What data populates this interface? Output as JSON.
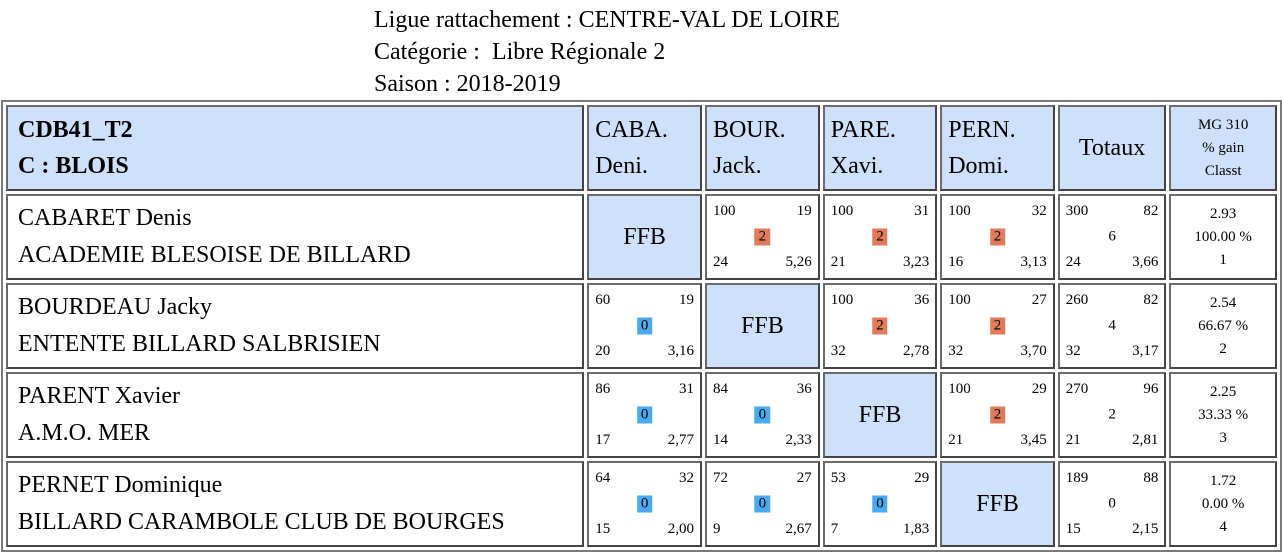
{
  "header": {
    "ligue": "Ligue rattachement : CENTRE-VAL DE LOIRE",
    "categorie": "Catégorie :  Libre Régionale 2",
    "saison": "Saison : 2018-2019"
  },
  "table": {
    "team_line1": "CDB41_T2",
    "team_line2": "C : BLOIS",
    "cols": [
      {
        "l1": "CABA.",
        "l2": "Deni."
      },
      {
        "l1": "BOUR.",
        "l2": "Jack."
      },
      {
        "l1": "PARE.",
        "l2": "Xavi."
      },
      {
        "l1": "PERN.",
        "l2": "Domi."
      }
    ],
    "totaux": "Totaux",
    "mg": {
      "l1": "MG 310",
      "l2": "% gain",
      "l3": "Classt"
    },
    "rows": [
      {
        "name": "CABARET Denis",
        "club": "ACADEMIE BLESOISE DE BILLARD",
        "cells": [
          {
            "ffb": "FFB"
          },
          {
            "tl": "100",
            "tr": "19",
            "mid": "2",
            "bl": "24",
            "br": "5,26"
          },
          {
            "tl": "100",
            "tr": "31",
            "mid": "2",
            "bl": "21",
            "br": "3,23"
          },
          {
            "tl": "100",
            "tr": "32",
            "mid": "2",
            "bl": "16",
            "br": "3,13"
          }
        ],
        "tot": {
          "tl": "300",
          "tr": "82",
          "mid": "6",
          "bl": "24",
          "br": "3,66"
        },
        "mg": {
          "l1": "2.93",
          "l2": "100.00 %",
          "l3": "1"
        }
      },
      {
        "name": "BOURDEAU Jacky",
        "club": "ENTENTE BILLARD SALBRISIEN",
        "cells": [
          {
            "tl": "60",
            "tr": "19",
            "mid": "0",
            "bl": "20",
            "br": "3,16"
          },
          {
            "ffb": "FFB"
          },
          {
            "tl": "100",
            "tr": "36",
            "mid": "2",
            "bl": "32",
            "br": "2,78"
          },
          {
            "tl": "100",
            "tr": "27",
            "mid": "2",
            "bl": "32",
            "br": "3,70"
          }
        ],
        "tot": {
          "tl": "260",
          "tr": "82",
          "mid": "4",
          "bl": "32",
          "br": "3,17"
        },
        "mg": {
          "l1": "2.54",
          "l2": "66.67 %",
          "l3": "2"
        }
      },
      {
        "name": "PARENT Xavier",
        "club": "A.M.O. MER",
        "cells": [
          {
            "tl": "86",
            "tr": "31",
            "mid": "0",
            "bl": "17",
            "br": "2,77"
          },
          {
            "tl": "84",
            "tr": "36",
            "mid": "0",
            "bl": "14",
            "br": "2,33"
          },
          {
            "ffb": "FFB"
          },
          {
            "tl": "100",
            "tr": "29",
            "mid": "2",
            "bl": "21",
            "br": "3,45"
          }
        ],
        "tot": {
          "tl": "270",
          "tr": "96",
          "mid": "2",
          "bl": "21",
          "br": "2,81"
        },
        "mg": {
          "l1": "2.25",
          "l2": "33.33 %",
          "l3": "3"
        }
      },
      {
        "name": "PERNET Dominique",
        "club": "BILLARD CARAMBOLE CLUB DE BOURGES",
        "cells": [
          {
            "tl": "64",
            "tr": "32",
            "mid": "0",
            "bl": "15",
            "br": "2,00"
          },
          {
            "tl": "72",
            "tr": "27",
            "mid": "0",
            "bl": "9",
            "br": "2,67"
          },
          {
            "tl": "53",
            "tr": "29",
            "mid": "0",
            "bl": "7",
            "br": "1,83"
          },
          {
            "ffb": "FFB"
          }
        ],
        "tot": {
          "tl": "189",
          "tr": "88",
          "mid": "0",
          "bl": "15",
          "br": "2,15"
        },
        "mg": {
          "l1": "1.72",
          "l2": "0.00 %",
          "l3": "4"
        }
      }
    ]
  }
}
